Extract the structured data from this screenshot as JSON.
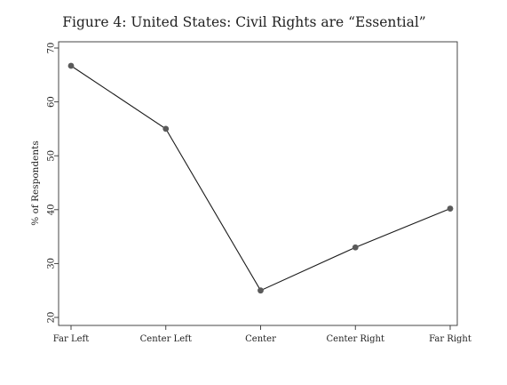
{
  "chart_data": {
    "type": "line",
    "title": "Figure 4: United States: Civil Rights are “Essential”",
    "xlabel": "",
    "ylabel": "% of Respondents",
    "categories": [
      "Far Left",
      "Center Left",
      "Center",
      "Center Right",
      "Far Right"
    ],
    "series": [
      {
        "values": [
          66.7,
          55.0,
          25.0,
          33.0,
          40.2
        ]
      }
    ],
    "ylim": [
      20,
      70
    ],
    "yticks": [
      20,
      30,
      40,
      50,
      60,
      70
    ],
    "ytick_labels": [
      "20",
      "30",
      "40",
      "50",
      "60",
      "70"
    ],
    "grid": false,
    "line_color": "#1a1a1a",
    "marker_color": "#5a5a5a"
  }
}
